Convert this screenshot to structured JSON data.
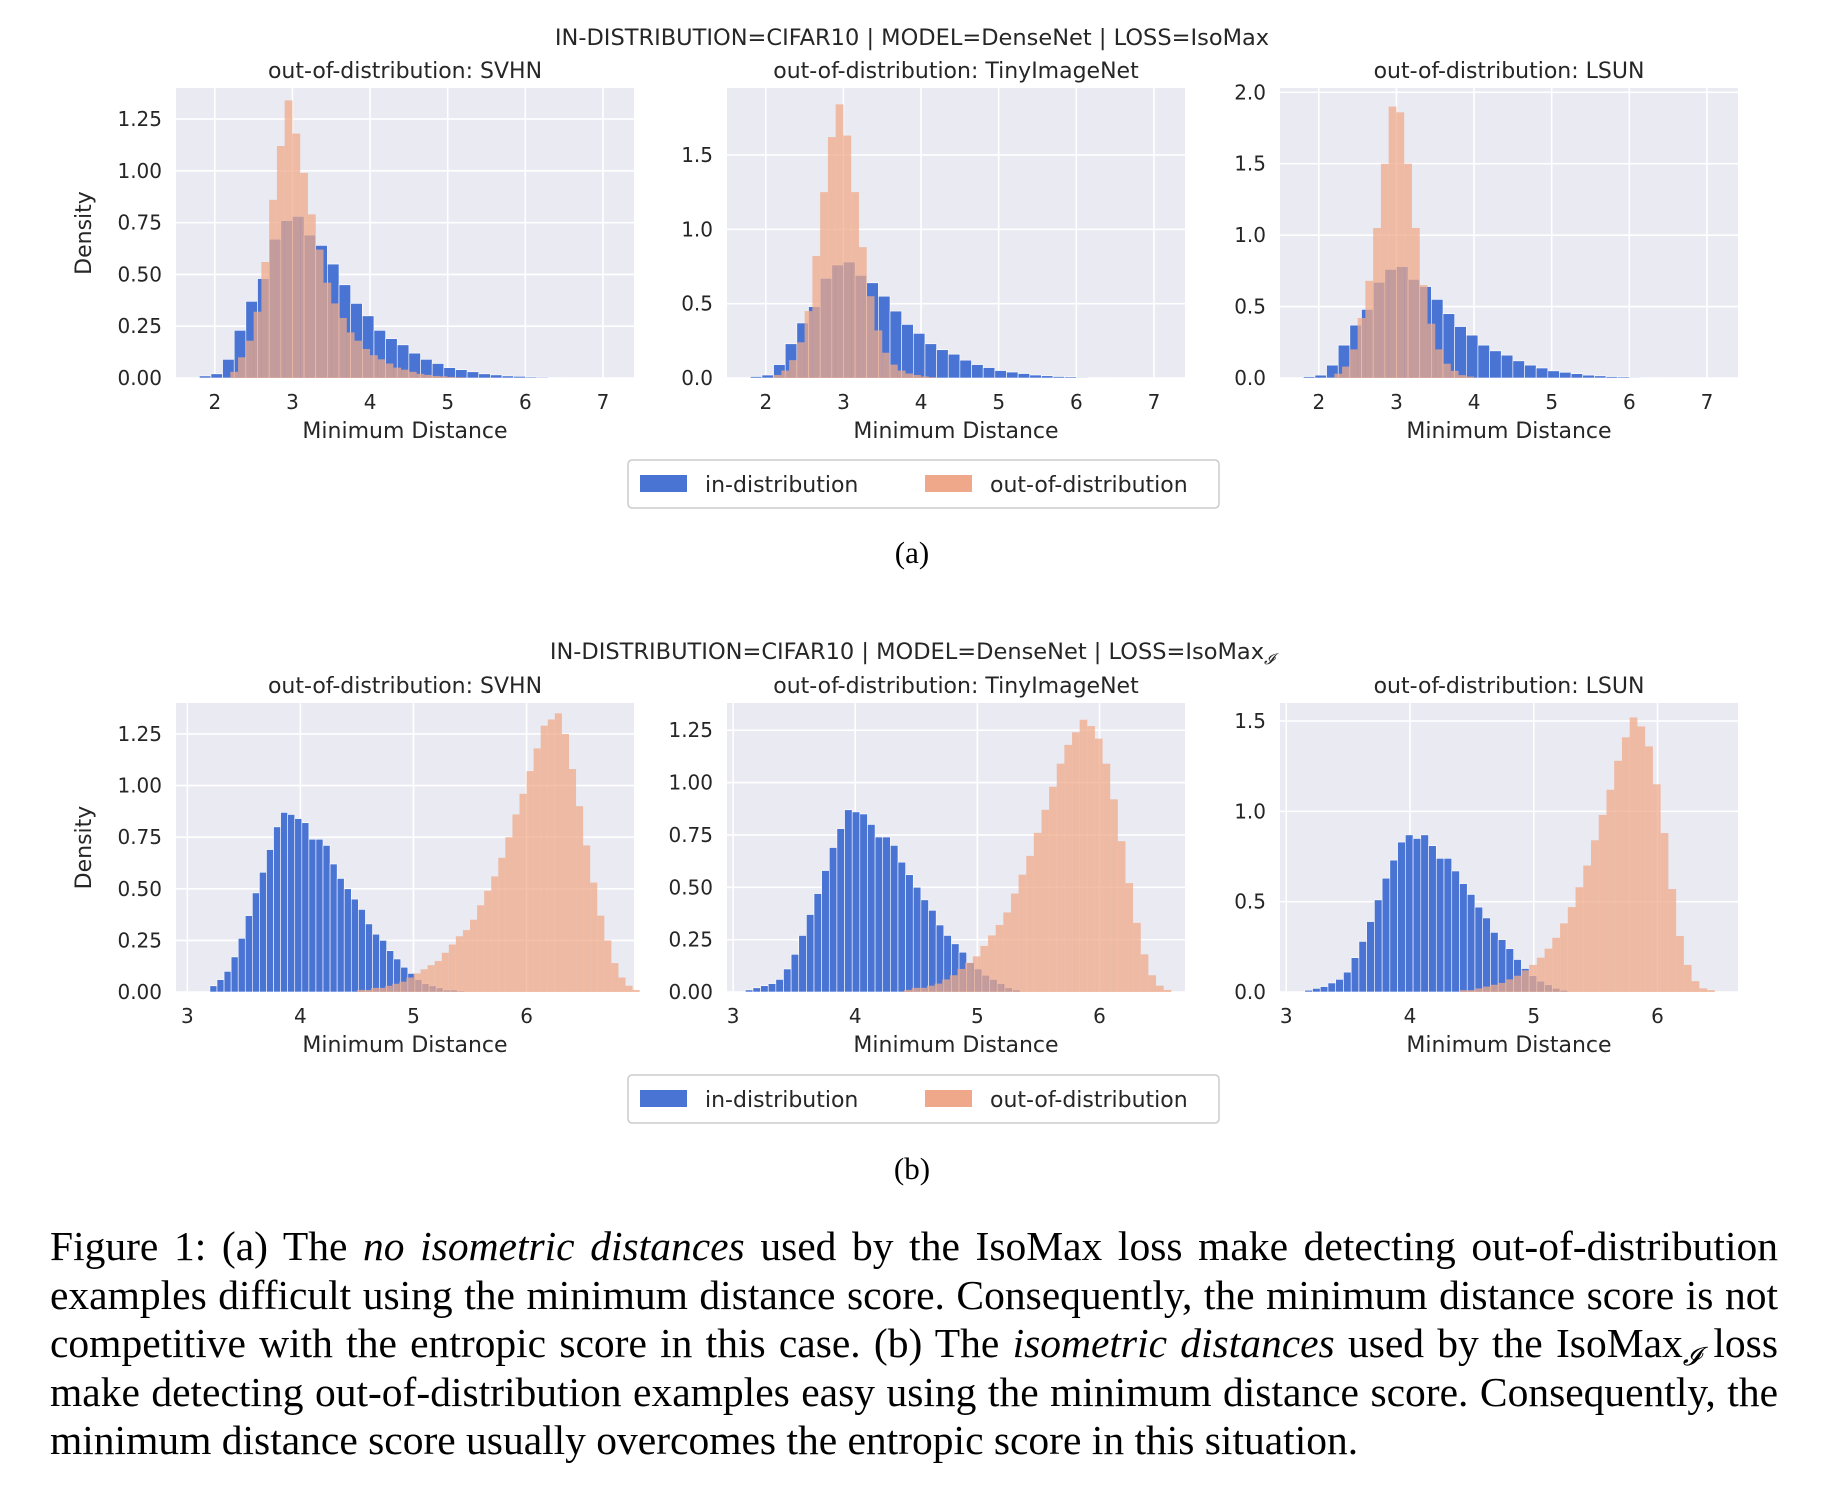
{
  "figure": {
    "panels": [
      {
        "suptitle": "IN-DISTRIBUTION=CIFAR10 | MODEL=DenseNet | LOSS=IsoMax",
        "label": "(a)",
        "legend": {
          "in_label": "in-distribution",
          "out_label": "out-of-distribution"
        }
      },
      {
        "suptitle": "IN-DISTRIBUTION=CIFAR10 | MODEL=DenseNet | LOSS=IsoMax",
        "suptitle_subscript": "𝓘",
        "label": "(b)",
        "legend": {
          "in_label": "in-distribution",
          "out_label": "out-of-distribution"
        }
      }
    ],
    "caption": {
      "prefix": "Figure 1: (a) The ",
      "em1": "no isometric distances",
      "text1": " used by the IsoMax loss make detecting out-of-distribution examples difficult using the minimum distance score. Consequently, the minimum distance score is not competitive with the entropic score in this case.  (b) The ",
      "em2": "isometric distances",
      "text2": " used by the IsoMax",
      "sub": "𝓘",
      "text3": " loss make detecting out-of-distribution examples easy using the minimum distance score. Consequently, the minimum distance score usually overcomes the entropic score in this situation."
    }
  },
  "colors": {
    "in_distribution": "#4a74d4",
    "out_of_distribution": "#efa98a",
    "overlap": "#9a7ba3",
    "plot_background": "#eaeaf2",
    "grid": "#ffffff"
  },
  "chart_data": [
    {
      "type": "bar",
      "panel": "(a)",
      "title": "out-of-distribution: SVHN",
      "xlabel": "Minimum Distance",
      "ylabel": "Density",
      "xlim": [
        1.5,
        7.4
      ],
      "ylim": [
        0,
        1.4
      ],
      "xticks": [
        2,
        3,
        4,
        5,
        6,
        7
      ],
      "yticks": [
        0,
        0.25,
        0.5,
        0.75,
        1.0,
        1.25
      ],
      "ytick_labels": [
        "0.00",
        "0.25",
        "0.50",
        "0.75",
        "1.00",
        "1.25"
      ],
      "grid": true,
      "series": [
        {
          "name": "in-distribution",
          "bin_start": 1.8,
          "bin_width": 0.15,
          "values": [
            0.01,
            0.02,
            0.09,
            0.23,
            0.37,
            0.48,
            0.67,
            0.76,
            0.78,
            0.69,
            0.64,
            0.55,
            0.45,
            0.36,
            0.3,
            0.23,
            0.19,
            0.16,
            0.12,
            0.09,
            0.07,
            0.05,
            0.04,
            0.03,
            0.02,
            0.015,
            0.01,
            0.008,
            0.005,
            0.004,
            0.003,
            0.002
          ]
        },
        {
          "name": "out-of-distribution",
          "bin_start": 2.2,
          "bin_width": 0.1,
          "values": [
            0.03,
            0.1,
            0.18,
            0.32,
            0.56,
            0.86,
            1.12,
            1.34,
            1.18,
            0.99,
            0.79,
            0.62,
            0.46,
            0.36,
            0.29,
            0.22,
            0.18,
            0.14,
            0.11,
            0.09,
            0.07,
            0.05,
            0.04,
            0.03,
            0.02,
            0.015,
            0.01,
            0.008,
            0.005,
            0.003
          ]
        }
      ]
    },
    {
      "type": "bar",
      "panel": "(a)",
      "title": "out-of-distribution: TinyImageNet",
      "xlabel": "Minimum Distance",
      "ylabel": "",
      "xlim": [
        1.5,
        7.4
      ],
      "ylim": [
        0,
        1.95
      ],
      "xticks": [
        2,
        3,
        4,
        5,
        6,
        7
      ],
      "yticks": [
        0,
        0.5,
        1.0,
        1.5
      ],
      "ytick_labels": [
        "0.0",
        "0.5",
        "1.0",
        "1.5"
      ],
      "grid": true,
      "series": [
        {
          "name": "in-distribution",
          "bin_start": 1.8,
          "bin_width": 0.15,
          "values": [
            0.01,
            0.02,
            0.09,
            0.23,
            0.37,
            0.48,
            0.67,
            0.76,
            0.78,
            0.69,
            0.64,
            0.55,
            0.45,
            0.36,
            0.3,
            0.23,
            0.19,
            0.16,
            0.12,
            0.09,
            0.07,
            0.05,
            0.04,
            0.03,
            0.02,
            0.015,
            0.01,
            0.008,
            0.005,
            0.004,
            0.003,
            0.002
          ]
        },
        {
          "name": "out-of-distribution",
          "bin_start": 2.1,
          "bin_width": 0.1,
          "values": [
            0.02,
            0.05,
            0.12,
            0.24,
            0.45,
            0.82,
            1.25,
            1.62,
            1.84,
            1.63,
            1.25,
            0.88,
            0.55,
            0.32,
            0.17,
            0.09,
            0.05,
            0.03,
            0.02,
            0.01,
            0.005
          ]
        }
      ]
    },
    {
      "type": "bar",
      "panel": "(a)",
      "title": "out-of-distribution: LSUN",
      "xlabel": "Minimum Distance",
      "ylabel": "",
      "xlim": [
        1.5,
        7.4
      ],
      "ylim": [
        0,
        2.03
      ],
      "xticks": [
        2,
        3,
        4,
        5,
        6,
        7
      ],
      "yticks": [
        0,
        0.5,
        1.0,
        1.5,
        2.0
      ],
      "ytick_labels": [
        "0.0",
        "0.5",
        "1.0",
        "1.5",
        "2.0"
      ],
      "grid": true,
      "series": [
        {
          "name": "in-distribution",
          "bin_start": 1.8,
          "bin_width": 0.15,
          "values": [
            0.01,
            0.02,
            0.09,
            0.23,
            0.37,
            0.48,
            0.67,
            0.76,
            0.78,
            0.69,
            0.64,
            0.55,
            0.45,
            0.36,
            0.3,
            0.23,
            0.19,
            0.16,
            0.12,
            0.09,
            0.07,
            0.05,
            0.04,
            0.03,
            0.02,
            0.015,
            0.01,
            0.008,
            0.005,
            0.004,
            0.003,
            0.002
          ]
        },
        {
          "name": "out-of-distribution",
          "bin_start": 2.2,
          "bin_width": 0.1,
          "values": [
            0.03,
            0.08,
            0.2,
            0.42,
            0.68,
            1.05,
            1.5,
            1.9,
            1.86,
            1.5,
            1.05,
            0.65,
            0.38,
            0.2,
            0.1,
            0.05,
            0.02,
            0.01
          ]
        }
      ]
    },
    {
      "type": "bar",
      "panel": "(b)",
      "title": "out-of-distribution: SVHN",
      "xlabel": "Minimum Distance",
      "ylabel": "Density",
      "xlim": [
        2.9,
        6.95
      ],
      "ylim": [
        0,
        1.4
      ],
      "xticks": [
        3,
        4,
        5,
        6
      ],
      "yticks": [
        0,
        0.25,
        0.5,
        0.75,
        1.0,
        1.25
      ],
      "ytick_labels": [
        "0.00",
        "0.25",
        "0.50",
        "0.75",
        "1.00",
        "1.25"
      ],
      "grid": true,
      "series": [
        {
          "name": "in-distribution",
          "bin_start": 3.2,
          "bin_width": 0.0625,
          "values": [
            0.03,
            0.06,
            0.1,
            0.17,
            0.26,
            0.37,
            0.48,
            0.58,
            0.69,
            0.8,
            0.87,
            0.86,
            0.84,
            0.82,
            0.74,
            0.74,
            0.71,
            0.62,
            0.55,
            0.5,
            0.45,
            0.4,
            0.33,
            0.28,
            0.25,
            0.2,
            0.16,
            0.12,
            0.09,
            0.06,
            0.04,
            0.03,
            0.02,
            0.01,
            0.01,
            0.005
          ]
        },
        {
          "name": "out-of-distribution",
          "bin_start": 4.5,
          "bin_width": 0.0625,
          "values": [
            0.01,
            0.01,
            0.02,
            0.02,
            0.03,
            0.04,
            0.05,
            0.07,
            0.09,
            0.11,
            0.13,
            0.15,
            0.19,
            0.23,
            0.27,
            0.3,
            0.35,
            0.42,
            0.49,
            0.56,
            0.65,
            0.75,
            0.86,
            0.96,
            1.07,
            1.18,
            1.29,
            1.32,
            1.35,
            1.25,
            1.08,
            0.9,
            0.71,
            0.53,
            0.37,
            0.25,
            0.14,
            0.07,
            0.03,
            0.01
          ]
        }
      ]
    },
    {
      "type": "bar",
      "panel": "(b)",
      "title": "out-of-distribution: TinyImageNet",
      "xlabel": "Minimum Distance",
      "ylabel": "",
      "xlim": [
        2.95,
        6.7
      ],
      "ylim": [
        0,
        1.38
      ],
      "xticks": [
        3,
        4,
        5,
        6
      ],
      "yticks": [
        0,
        0.25,
        0.5,
        0.75,
        1.0,
        1.25
      ],
      "ytick_labels": [
        "0.00",
        "0.25",
        "0.50",
        "0.75",
        "1.00",
        "1.25"
      ],
      "grid": true,
      "series": [
        {
          "name": "in-distribution",
          "bin_start": 3.1,
          "bin_width": 0.0625,
          "values": [
            0.01,
            0.02,
            0.03,
            0.04,
            0.06,
            0.11,
            0.18,
            0.27,
            0.37,
            0.47,
            0.58,
            0.69,
            0.78,
            0.87,
            0.86,
            0.85,
            0.8,
            0.74,
            0.74,
            0.7,
            0.62,
            0.56,
            0.5,
            0.44,
            0.39,
            0.32,
            0.27,
            0.23,
            0.19,
            0.14,
            0.11,
            0.08,
            0.06,
            0.04,
            0.02,
            0.01
          ]
        },
        {
          "name": "out-of-distribution",
          "bin_start": 4.4,
          "bin_width": 0.0625,
          "values": [
            0.01,
            0.02,
            0.02,
            0.03,
            0.04,
            0.06,
            0.08,
            0.11,
            0.14,
            0.17,
            0.22,
            0.27,
            0.32,
            0.38,
            0.47,
            0.56,
            0.65,
            0.76,
            0.87,
            0.98,
            1.09,
            1.18,
            1.24,
            1.3,
            1.27,
            1.21,
            1.09,
            0.92,
            0.72,
            0.52,
            0.33,
            0.18,
            0.08,
            0.03,
            0.01
          ]
        }
      ]
    },
    {
      "type": "bar",
      "panel": "(b)",
      "title": "out-of-distribution: LSUN",
      "xlabel": "Minimum Distance",
      "ylabel": "",
      "xlim": [
        2.95,
        6.65
      ],
      "ylim": [
        0,
        1.6
      ],
      "xticks": [
        3,
        4,
        5,
        6
      ],
      "yticks": [
        0,
        0.5,
        1.0,
        1.5
      ],
      "ytick_labels": [
        "0.0",
        "0.5",
        "1.0",
        "1.5"
      ],
      "grid": true,
      "series": [
        {
          "name": "in-distribution",
          "bin_start": 3.15,
          "bin_width": 0.0625,
          "values": [
            0.01,
            0.02,
            0.03,
            0.05,
            0.07,
            0.11,
            0.19,
            0.28,
            0.39,
            0.51,
            0.63,
            0.73,
            0.83,
            0.87,
            0.85,
            0.87,
            0.81,
            0.74,
            0.74,
            0.67,
            0.6,
            0.54,
            0.47,
            0.41,
            0.33,
            0.29,
            0.24,
            0.18,
            0.13,
            0.09,
            0.06,
            0.04,
            0.02,
            0.01
          ]
        },
        {
          "name": "out-of-distribution",
          "bin_start": 4.4,
          "bin_width": 0.0625,
          "values": [
            0.01,
            0.01,
            0.02,
            0.03,
            0.04,
            0.05,
            0.07,
            0.09,
            0.12,
            0.15,
            0.19,
            0.24,
            0.3,
            0.38,
            0.47,
            0.58,
            0.7,
            0.84,
            0.98,
            1.12,
            1.28,
            1.41,
            1.52,
            1.47,
            1.36,
            1.15,
            0.88,
            0.57,
            0.31,
            0.15,
            0.06,
            0.02,
            0.01
          ]
        }
      ]
    }
  ]
}
